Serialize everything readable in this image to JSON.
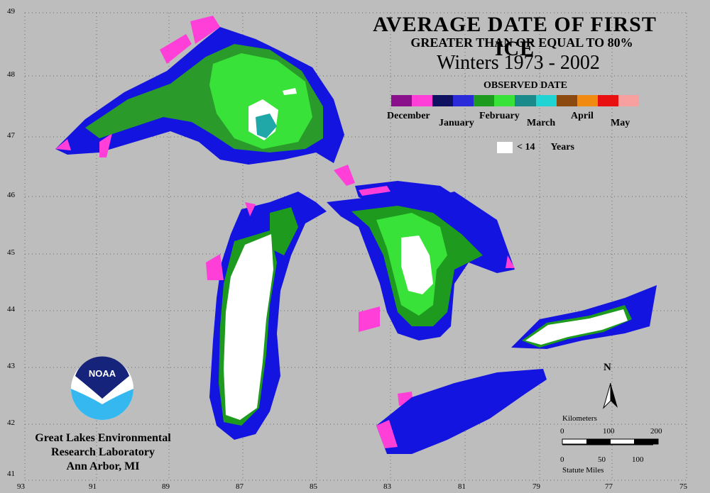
{
  "title": "AVERAGE DATE OF FIRST ICE",
  "subtitle": "GREATER THAN OR EQUAL TO 80%",
  "period": "Winters 1973 - 2002",
  "legend": {
    "title": "OBSERVED DATE",
    "ramp_colors": [
      "#8a0f8a",
      "#ff3fd8",
      "#101060",
      "#2a2ad8",
      "#1e9a1e",
      "#39e239",
      "#1a8a8a",
      "#20d4d4",
      "#8a4a10",
      "#f08a10",
      "#e81010",
      "#f8a0a0"
    ],
    "months": [
      "December",
      "January",
      "February",
      "March",
      "April",
      "May"
    ],
    "threshold_label": "< 14",
    "threshold_unit": "Years",
    "threshold_color": "#ffffff"
  },
  "axes": {
    "x_labels": [
      "93",
      "91",
      "89",
      "87",
      "85",
      "83",
      "81",
      "79",
      "77",
      "75"
    ],
    "y_labels": [
      "49",
      "48",
      "47",
      "46",
      "45",
      "44",
      "43",
      "42",
      "41"
    ]
  },
  "organization": {
    "logo_text": "NOAA",
    "name_line1": "Great Lakes Environmental",
    "name_line2": "Research Laboratory",
    "name_line3": "Ann Arbor, MI"
  },
  "scale_bar": {
    "top_unit": "Kilometers",
    "km_ticks": [
      "0",
      "100",
      "200"
    ],
    "mile_ticks": [
      "0",
      "50",
      "100"
    ],
    "bottom_unit": "Statute Miles"
  },
  "north_label": "N"
}
